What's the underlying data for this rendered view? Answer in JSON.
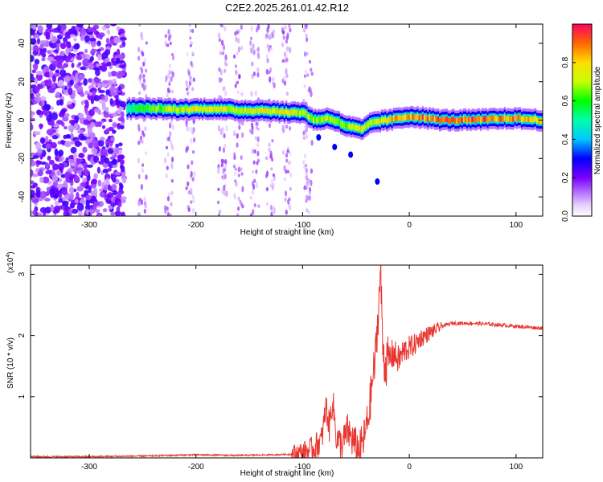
{
  "figure_title": "C2E2.2025.261.01.42.R12",
  "chart_data": [
    {
      "type": "heatmap",
      "xlabel": "Height of straight line (km)",
      "ylabel": "Frequency (Hz)",
      "xlim": [
        -355,
        125
      ],
      "ylim": [
        -50,
        50
      ],
      "x_ticks": [
        -300,
        -200,
        -100,
        0,
        100
      ],
      "x_tick_labels": [
        "-300",
        "-200",
        "-100",
        "0",
        "100"
      ],
      "y_ticks": [
        -40,
        -20,
        0,
        20,
        40
      ],
      "y_tick_labels": [
        "-40",
        "-20",
        "0",
        "20",
        "40"
      ],
      "colorbar": {
        "label": "Normalized spectral amplitude",
        "range": [
          0,
          1
        ],
        "ticks": [
          0.0,
          0.2,
          0.4,
          0.6,
          0.8
        ],
        "tick_labels": [
          "0.0",
          "0.2",
          "0.4",
          "0.6",
          "0.8"
        ]
      },
      "ridge": [
        {
          "x": -265,
          "f": 6,
          "amp": 0.55
        },
        {
          "x": -240,
          "f": 6,
          "amp": 0.7
        },
        {
          "x": -215,
          "f": 5.5,
          "amp": 0.75
        },
        {
          "x": -185,
          "f": 6,
          "amp": 0.8
        },
        {
          "x": -160,
          "f": 5,
          "amp": 0.75
        },
        {
          "x": -135,
          "f": 5,
          "amp": 0.8
        },
        {
          "x": -115,
          "f": 4,
          "amp": 0.8
        },
        {
          "x": -100,
          "f": 4,
          "amp": 0.75
        },
        {
          "x": -90,
          "f": 0,
          "amp": 0.7
        },
        {
          "x": -75,
          "f": 1,
          "amp": 0.75
        },
        {
          "x": -60,
          "f": -3,
          "amp": 0.7
        },
        {
          "x": -45,
          "f": -5,
          "amp": 0.8
        },
        {
          "x": -35,
          "f": -1,
          "amp": 0.75
        },
        {
          "x": -20,
          "f": 0,
          "amp": 0.85
        },
        {
          "x": 0,
          "f": 2,
          "amp": 0.9
        },
        {
          "x": 30,
          "f": 0,
          "amp": 0.95
        },
        {
          "x": 60,
          "f": 0,
          "amp": 0.95
        },
        {
          "x": 95,
          "f": 1,
          "amp": 0.9
        },
        {
          "x": 125,
          "f": 0,
          "amp": 0.85
        }
      ]
    },
    {
      "type": "line",
      "xlabel": "Height of straight line (km)",
      "ylabel": "SNR (10 * v/v)",
      "y_scale_label": "(x10",
      "y_scale_exp": "4",
      "xlim": [
        -355,
        125
      ],
      "ylim": [
        0,
        3.15
      ],
      "x_ticks": [
        -300,
        -200,
        -100,
        0,
        100
      ],
      "x_tick_labels": [
        "-300",
        "-200",
        "-100",
        "0",
        "100"
      ],
      "y_ticks": [
        1,
        2,
        3
      ],
      "y_tick_labels": [
        "1",
        "2",
        "3"
      ],
      "color": "#e8362f",
      "series": [
        {
          "name": "SNR",
          "x": [
            -355,
            -300,
            -250,
            -200,
            -160,
            -130,
            -110,
            -100,
            -90,
            -82,
            -78,
            -75,
            -72,
            -68,
            -63,
            -58,
            -52,
            -47,
            -42,
            -38,
            -35,
            -32,
            -29,
            -27,
            -25,
            -23,
            -20,
            -15,
            -10,
            -5,
            0,
            5,
            10,
            15,
            20,
            25,
            30,
            40,
            50,
            60,
            80,
            100,
            125
          ],
          "y": [
            0.02,
            0.02,
            0.03,
            0.05,
            0.04,
            0.05,
            0.06,
            0.08,
            0.15,
            0.3,
            0.85,
            0.5,
            0.95,
            0.3,
            0.2,
            0.45,
            0.25,
            0.1,
            0.35,
            0.7,
            1.2,
            1.6,
            2.4,
            3.1,
            1.9,
            1.5,
            1.6,
            1.7,
            1.6,
            1.75,
            1.8,
            1.85,
            1.95,
            2.0,
            2.05,
            2.1,
            2.15,
            2.2,
            2.2,
            2.2,
            2.18,
            2.15,
            2.12
          ]
        }
      ]
    }
  ]
}
